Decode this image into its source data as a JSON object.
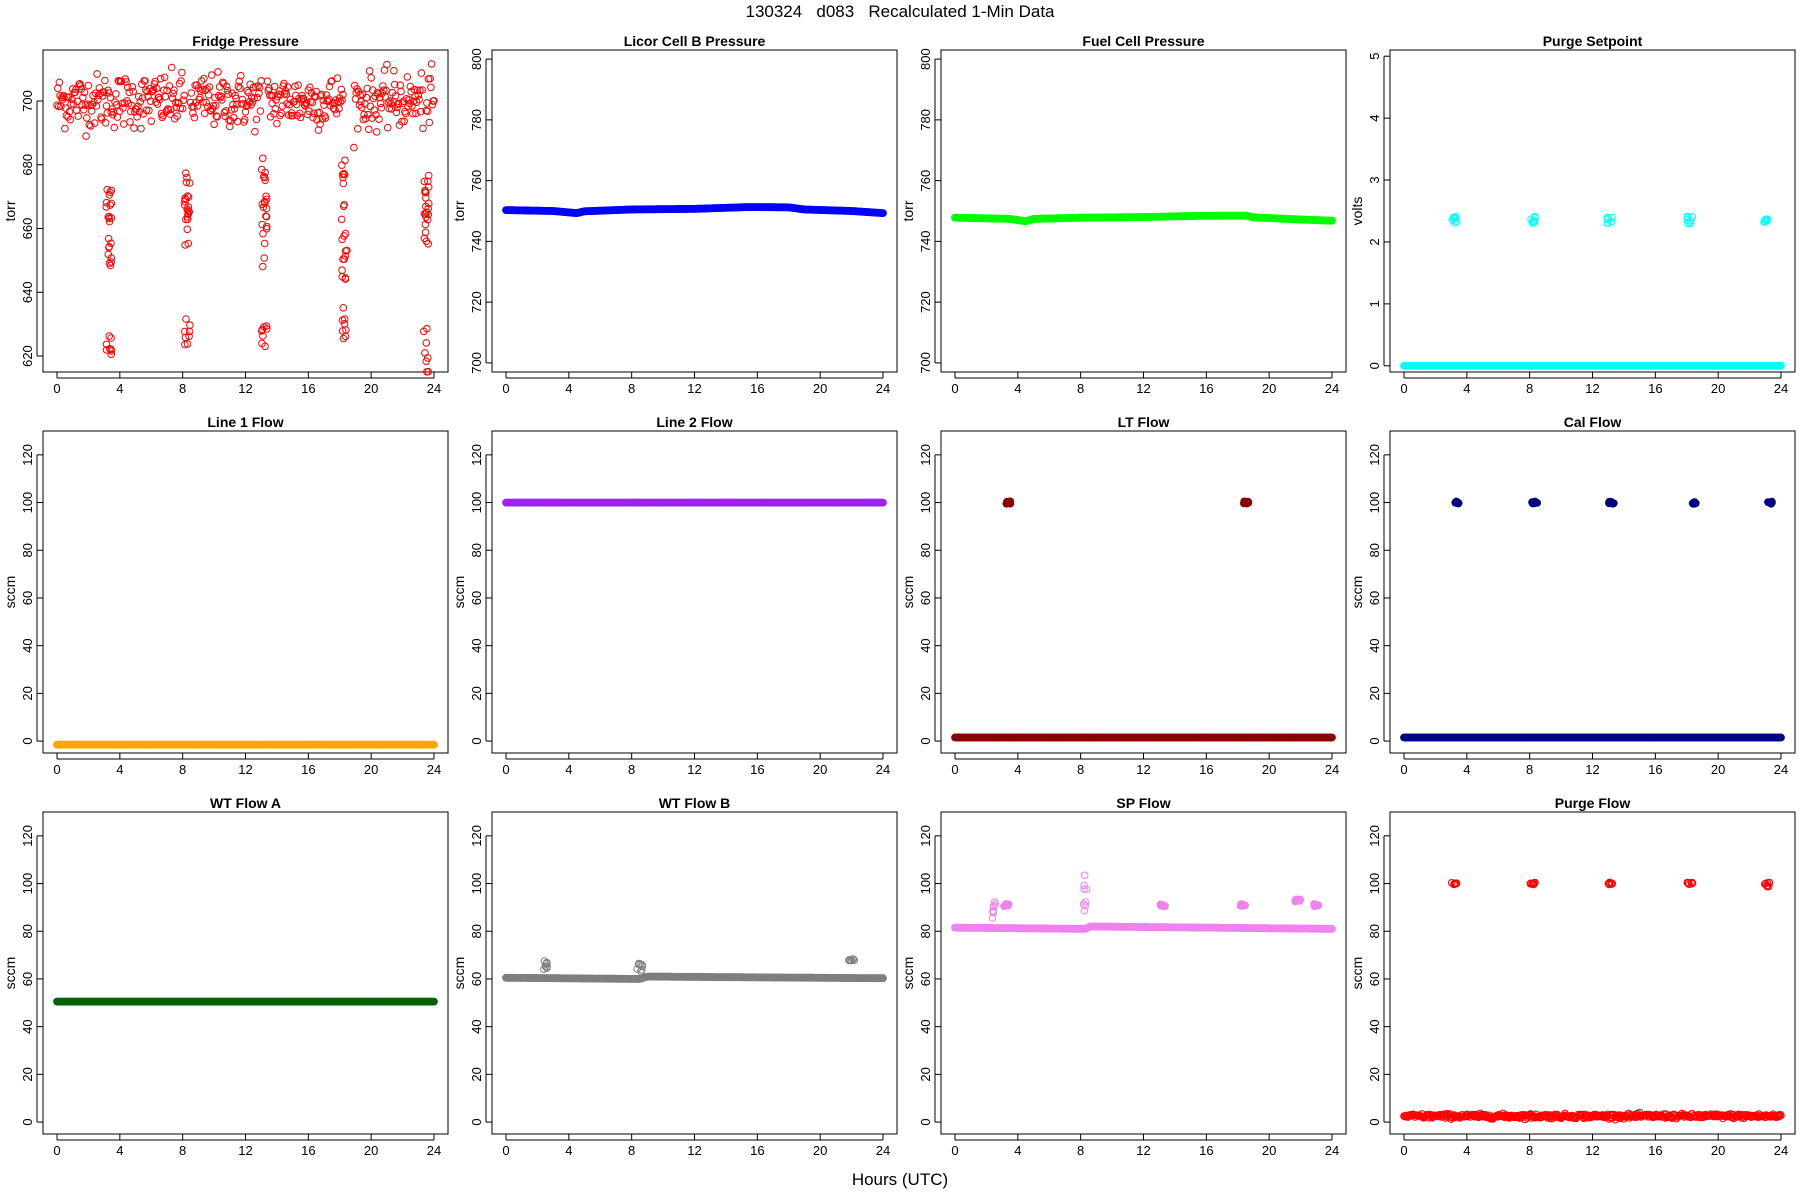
{
  "title": "130324   d083   Recalculated 1-Min Data",
  "xlabel": "Hours (UTC)",
  "chart_data": [
    {
      "type": "scatter",
      "title": "Fridge Pressure",
      "ylabel": "torr",
      "xlim": [
        0,
        24
      ],
      "ylim": [
        615,
        716
      ],
      "xticks": [
        0,
        4,
        8,
        12,
        16,
        20,
        24
      ],
      "yticks": [
        620,
        640,
        660,
        680,
        700
      ],
      "color": "#ff0000",
      "marker": "open",
      "series": [
        {
          "pattern": "band",
          "x_ranges": [
            [
              0,
              3.3
            ],
            [
              3.4,
              8.1
            ],
            [
              8.5,
              13.0
            ],
            [
              13.4,
              18.2
            ],
            [
              18.9,
              23.3
            ],
            [
              23.5,
              24
            ]
          ],
          "center": 700,
          "spread": 7,
          "outlier_range": [
            685,
            715
          ]
        },
        {
          "pattern": "drop",
          "x_center": 3.3,
          "y_range": [
            647,
            673
          ]
        },
        {
          "pattern": "drop",
          "x_center": 8.3,
          "y_range": [
            654,
            678
          ]
        },
        {
          "pattern": "drop",
          "x_center": 13.2,
          "y_range": [
            648,
            684
          ]
        },
        {
          "pattern": "drop",
          "x_center": 18.3,
          "y_range": [
            641,
            683
          ]
        },
        {
          "pattern": "drop",
          "x_center": 23.5,
          "y_range": [
            654,
            678
          ]
        },
        {
          "pattern": "cluster",
          "x_center": 3.3,
          "y_range": [
            620,
            627
          ]
        },
        {
          "pattern": "cluster",
          "x_center": 8.3,
          "y_range": [
            623,
            632
          ]
        },
        {
          "pattern": "cluster",
          "x_center": 13.2,
          "y_range": [
            623,
            631
          ]
        },
        {
          "pattern": "cluster",
          "x_center": 18.3,
          "y_range": [
            625,
            636
          ]
        },
        {
          "pattern": "cluster",
          "x_center": 23.5,
          "y_range": [
            615,
            629
          ]
        }
      ]
    },
    {
      "type": "scatter",
      "title": "Licor Cell B Pressure",
      "ylabel": "torr",
      "xlim": [
        0,
        24
      ],
      "ylim": [
        697,
        803
      ],
      "xticks": [
        0,
        4,
        8,
        12,
        16,
        20,
        24
      ],
      "yticks": [
        700,
        720,
        740,
        760,
        780,
        800
      ],
      "color": "#0000ff",
      "marker": "filled",
      "series": [
        {
          "pattern": "line",
          "points": [
            [
              0,
              750.3
            ],
            [
              3,
              750.0
            ],
            [
              4.5,
              749.3
            ],
            [
              5,
              749.9
            ],
            [
              8,
              750.5
            ],
            [
              12,
              750.7
            ],
            [
              15.5,
              751.3
            ],
            [
              18,
              751.2
            ],
            [
              19,
              750.5
            ],
            [
              22,
              750.0
            ],
            [
              24,
              749.3
            ]
          ]
        }
      ]
    },
    {
      "type": "scatter",
      "title": "Fuel Cell Pressure",
      "ylabel": "torr",
      "xlim": [
        0,
        24
      ],
      "ylim": [
        697,
        803
      ],
      "xticks": [
        0,
        4,
        8,
        12,
        16,
        20,
        24
      ],
      "yticks": [
        700,
        720,
        740,
        760,
        780,
        800
      ],
      "color": "#00ff00",
      "marker": "filled",
      "series": [
        {
          "pattern": "line",
          "points": [
            [
              0,
              747.8
            ],
            [
              3.5,
              747.4
            ],
            [
              4.5,
              746.6
            ],
            [
              5,
              747.4
            ],
            [
              8,
              747.8
            ],
            [
              12,
              748.0
            ],
            [
              15.5,
              748.4
            ],
            [
              18.5,
              748.5
            ],
            [
              19,
              747.9
            ],
            [
              22,
              747.2
            ],
            [
              24,
              746.8
            ]
          ]
        }
      ]
    },
    {
      "type": "scatter",
      "title": "Purge Setpoint",
      "ylabel": "volts",
      "xlim": [
        0,
        24
      ],
      "ylim": [
        -0.1,
        5.1
      ],
      "xticks": [
        0,
        4,
        8,
        12,
        16,
        20,
        24
      ],
      "yticks": [
        0,
        1,
        2,
        3,
        4,
        5
      ],
      "color": "#00ffff",
      "marker": "filled",
      "series": [
        {
          "pattern": "line",
          "points": [
            [
              0,
              0
            ],
            [
              24,
              0
            ]
          ]
        },
        {
          "pattern": "cluster",
          "x_center": 3.2,
          "y_range": [
            2.3,
            2.42
          ],
          "marker": "open"
        },
        {
          "pattern": "cluster",
          "x_center": 8.2,
          "y_range": [
            2.3,
            2.42
          ],
          "marker": "open"
        },
        {
          "pattern": "cluster",
          "x_center": 13.1,
          "y_range": [
            2.3,
            2.42
          ],
          "marker": "open"
        },
        {
          "pattern": "cluster",
          "x_center": 18.2,
          "y_range": [
            2.3,
            2.42
          ],
          "marker": "open"
        },
        {
          "pattern": "cluster",
          "x_center": 23.1,
          "y_range": [
            2.3,
            2.42
          ],
          "marker": "open"
        }
      ]
    },
    {
      "type": "scatter",
      "title": "Line 1 Flow",
      "ylabel": "sccm",
      "xlim": [
        0,
        24
      ],
      "ylim": [
        -5,
        130
      ],
      "xticks": [
        0,
        4,
        8,
        12,
        16,
        20,
        24
      ],
      "yticks": [
        0,
        20,
        40,
        60,
        80,
        100,
        120
      ],
      "color": "#ffa500",
      "marker": "filled",
      "series": [
        {
          "pattern": "line",
          "points": [
            [
              0,
              -1.5
            ],
            [
              24,
              -1.5
            ]
          ]
        }
      ]
    },
    {
      "type": "scatter",
      "title": "Line 2 Flow",
      "ylabel": "sccm",
      "xlim": [
        0,
        24
      ],
      "ylim": [
        -5,
        130
      ],
      "xticks": [
        0,
        4,
        8,
        12,
        16,
        20,
        24
      ],
      "yticks": [
        0,
        20,
        40,
        60,
        80,
        100,
        120
      ],
      "color": "#a020f0",
      "marker": "filled",
      "series": [
        {
          "pattern": "line",
          "points": [
            [
              0,
              100
            ],
            [
              24,
              100
            ]
          ]
        }
      ]
    },
    {
      "type": "scatter",
      "title": "LT Flow",
      "ylabel": "sccm",
      "xlim": [
        0,
        24
      ],
      "ylim": [
        -5,
        130
      ],
      "xticks": [
        0,
        4,
        8,
        12,
        16,
        20,
        24
      ],
      "yticks": [
        0,
        20,
        40,
        60,
        80,
        100,
        120
      ],
      "color": "#8b0000",
      "marker": "filled",
      "series": [
        {
          "pattern": "line",
          "points": [
            [
              0,
              1.5
            ],
            [
              24,
              1.5
            ]
          ]
        },
        {
          "pattern": "cluster",
          "x_center": 3.4,
          "y_range": [
            99.5,
            100.5
          ]
        },
        {
          "pattern": "cluster",
          "x_center": 18.5,
          "y_range": [
            99.5,
            100.5
          ]
        }
      ]
    },
    {
      "type": "scatter",
      "title": "Cal Flow",
      "ylabel": "sccm",
      "xlim": [
        0,
        24
      ],
      "ylim": [
        -5,
        130
      ],
      "xticks": [
        0,
        4,
        8,
        12,
        16,
        20,
        24
      ],
      "yticks": [
        0,
        20,
        40,
        60,
        80,
        100,
        120
      ],
      "color": "#000080",
      "marker": "filled",
      "series": [
        {
          "pattern": "line",
          "points": [
            [
              0,
              1.5
            ],
            [
              24,
              1.5
            ]
          ]
        },
        {
          "pattern": "cluster",
          "x_center": 3.4,
          "y_range": [
            99.5,
            100.5
          ]
        },
        {
          "pattern": "cluster",
          "x_center": 8.3,
          "y_range": [
            99.5,
            100.5
          ]
        },
        {
          "pattern": "cluster",
          "x_center": 13.2,
          "y_range": [
            99.5,
            100.5
          ]
        },
        {
          "pattern": "cluster",
          "x_center": 18.4,
          "y_range": [
            99.5,
            100.5
          ]
        },
        {
          "pattern": "cluster",
          "x_center": 23.3,
          "y_range": [
            99.5,
            100.5
          ]
        }
      ]
    },
    {
      "type": "scatter",
      "title": "WT Flow A",
      "ylabel": "sccm",
      "xlim": [
        0,
        24
      ],
      "ylim": [
        -5,
        130
      ],
      "xticks": [
        0,
        4,
        8,
        12,
        16,
        20,
        24
      ],
      "yticks": [
        0,
        20,
        40,
        60,
        80,
        100,
        120
      ],
      "color": "#006400",
      "marker": "filled",
      "series": [
        {
          "pattern": "line",
          "points": [
            [
              0,
              50.5
            ],
            [
              24,
              50.5
            ]
          ]
        }
      ]
    },
    {
      "type": "scatter",
      "title": "WT Flow B",
      "ylabel": "sccm",
      "xlim": [
        0,
        24
      ],
      "ylim": [
        -5,
        130
      ],
      "xticks": [
        0,
        4,
        8,
        12,
        16,
        20,
        24
      ],
      "yticks": [
        0,
        20,
        40,
        60,
        80,
        100,
        120
      ],
      "color": "#7f7f7f",
      "marker": "filled",
      "series": [
        {
          "pattern": "line",
          "points": [
            [
              0,
              60.5
            ],
            [
              8.5,
              60.0
            ],
            [
              9,
              61.0
            ],
            [
              24,
              60.3
            ]
          ]
        },
        {
          "pattern": "cluster",
          "x_center": 2.5,
          "y_range": [
            63,
            68
          ],
          "marker": "open"
        },
        {
          "pattern": "cluster",
          "x_center": 8.5,
          "y_range": [
            63,
            67
          ],
          "marker": "open"
        },
        {
          "pattern": "cluster",
          "x_center": 22.0,
          "y_range": [
            67.5,
            68.5
          ],
          "marker": "open"
        }
      ]
    },
    {
      "type": "scatter",
      "title": "SP Flow",
      "ylabel": "sccm",
      "xlim": [
        0,
        24
      ],
      "ylim": [
        -5,
        130
      ],
      "xticks": [
        0,
        4,
        8,
        12,
        16,
        20,
        24
      ],
      "yticks": [
        0,
        20,
        40,
        60,
        80,
        100,
        120
      ],
      "color": "#ee82ee",
      "marker": "filled",
      "series": [
        {
          "pattern": "line",
          "points": [
            [
              0,
              81.5
            ],
            [
              8.3,
              81.0
            ],
            [
              8.6,
              82.0
            ],
            [
              24,
              81.0
            ]
          ]
        },
        {
          "pattern": "cluster",
          "x_center": 2.4,
          "y_range": [
            85,
            93
          ],
          "marker": "open"
        },
        {
          "pattern": "cluster",
          "x_center": 3.3,
          "y_range": [
            90.5,
            91.5
          ]
        },
        {
          "pattern": "cluster",
          "x_center": 8.3,
          "y_range": [
            86,
            105
          ],
          "marker": "open"
        },
        {
          "pattern": "cluster",
          "x_center": 13.2,
          "y_range": [
            90.5,
            91.5
          ]
        },
        {
          "pattern": "cluster",
          "x_center": 18.3,
          "y_range": [
            90.5,
            91.5
          ]
        },
        {
          "pattern": "cluster",
          "x_center": 21.8,
          "y_range": [
            92.5,
            93.5
          ]
        },
        {
          "pattern": "cluster",
          "x_center": 23.0,
          "y_range": [
            90.5,
            91.5
          ]
        }
      ]
    },
    {
      "type": "scatter",
      "title": "Purge Flow",
      "ylabel": "sccm",
      "xlim": [
        0,
        24
      ],
      "ylim": [
        -5,
        130
      ],
      "xticks": [
        0,
        4,
        8,
        12,
        16,
        20,
        24
      ],
      "yticks": [
        0,
        20,
        40,
        60,
        80,
        100,
        120
      ],
      "color": "#ff0000",
      "marker": "open",
      "series": [
        {
          "pattern": "band",
          "x_ranges": [
            [
              0,
              24
            ]
          ],
          "center": 2.5,
          "spread": 0.8,
          "outlier_range": [
            1,
            4
          ]
        },
        {
          "pattern": "cluster",
          "x_center": 3.2,
          "y_range": [
            99.5,
            100.5
          ]
        },
        {
          "pattern": "cluster",
          "x_center": 8.2,
          "y_range": [
            99.5,
            100.5
          ]
        },
        {
          "pattern": "cluster",
          "x_center": 13.1,
          "y_range": [
            99.5,
            100.5
          ]
        },
        {
          "pattern": "cluster",
          "x_center": 18.2,
          "y_range": [
            99.5,
            100.5
          ]
        },
        {
          "pattern": "cluster",
          "x_center": 23.1,
          "y_range": [
            98.5,
            100.5
          ]
        }
      ]
    }
  ]
}
